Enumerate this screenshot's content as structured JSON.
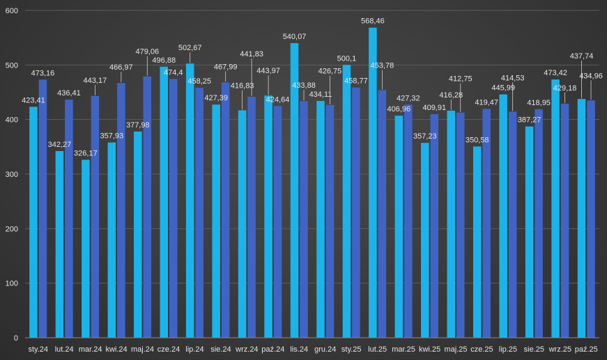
{
  "chart_data": {
    "type": "bar",
    "title": "",
    "xlabel": "",
    "ylabel": "",
    "ylim": [
      0,
      600
    ],
    "yticks": [
      0,
      100,
      200,
      300,
      400,
      500,
      600
    ],
    "ytick_labels": [
      "0",
      "100",
      "200",
      "300",
      "400",
      "500",
      "600"
    ],
    "grid": true,
    "legend": "none",
    "categories": [
      "sty.24",
      "lut.24",
      "mar.24",
      "kwi.24",
      "maj.24",
      "cze.24",
      "lip.24",
      "sie.24",
      "wrz.24",
      "paź.24",
      "lis.24",
      "gru.24",
      "sty.25",
      "lut.25",
      "mar.25",
      "kwi.25",
      "maj.25",
      "cze.25",
      "lip.25",
      "sie.25",
      "wrz.25",
      "paź.25"
    ],
    "series": [
      {
        "name": "series-1",
        "color": "#1ab4ec",
        "values": [
          423.41,
          342.27,
          326.17,
          357.93,
          377.98,
          496.88,
          502.67,
          427.39,
          416.83,
          443.97,
          540.07,
          434.11,
          500.1,
          568.46,
          406.96,
          357.23,
          416.28,
          350.58,
          445.99,
          387.27,
          473.42,
          437.74
        ],
        "labels": [
          "423,41",
          "342,27",
          "326,17",
          "357,93",
          "377,98",
          "496,88",
          "502,67",
          "427,39",
          "416,83",
          "443,97",
          "540,07",
          "434,11",
          "500,1",
          "568,46",
          "406,96",
          "357,23",
          "416,28",
          "350,58",
          "445,99",
          "387,27",
          "473,42",
          "437,74"
        ]
      },
      {
        "name": "series-2",
        "color": "#4064c6",
        "values": [
          473.16,
          436.41,
          443.17,
          466.97,
          479.06,
          474.4,
          458.25,
          467.99,
          441.83,
          424.64,
          433.88,
          426.75,
          458.77,
          453.78,
          427.32,
          409.91,
          412.75,
          419.47,
          414.53,
          418.95,
          429.18,
          434.96
        ],
        "labels": [
          "473,16",
          "436,41",
          "443,17",
          "466,97",
          "479,06",
          "474,4",
          "458,25",
          "467,99",
          "441,83",
          "424,64",
          "433,88",
          "426,75",
          "458,77",
          "453,78",
          "427,32",
          "409,91",
          "412,75",
          "419,47",
          "414,53",
          "418,95",
          "429,18",
          "434,96"
        ]
      }
    ]
  }
}
